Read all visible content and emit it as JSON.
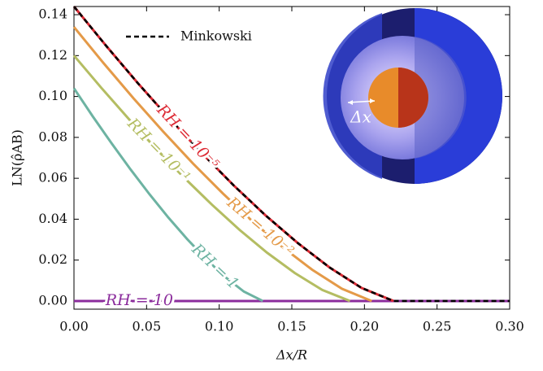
{
  "chart_data": {
    "type": "line",
    "xlabel": "Δx/R",
    "ylabel": "LN(ρ̂AB)",
    "xlim": [
      0,
      0.3
    ],
    "ylim": [
      -0.004,
      0.144
    ],
    "xticks": [
      {
        "value": 0,
        "label": "0.00"
      },
      {
        "value": 0.05,
        "label": "0.05"
      },
      {
        "value": 0.1,
        "label": "0.10"
      },
      {
        "value": 0.15,
        "label": "0.15"
      },
      {
        "value": 0.2,
        "label": "0.20"
      },
      {
        "value": 0.25,
        "label": "0.25"
      },
      {
        "value": 0.3,
        "label": "0.30"
      }
    ],
    "yticks": [
      {
        "value": 0,
        "label": "0.00"
      },
      {
        "value": 0.02,
        "label": "0.02"
      },
      {
        "value": 0.04,
        "label": "0.04"
      },
      {
        "value": 0.06,
        "label": "0.06"
      },
      {
        "value": 0.08,
        "label": "0.08"
      },
      {
        "value": 0.1,
        "label": "0.10"
      },
      {
        "value": 0.12,
        "label": "0.12"
      },
      {
        "value": 0.14,
        "label": "0.14"
      }
    ],
    "annotations": [
      "Δx"
    ],
    "series": [
      {
        "name": "RH = 10⁻⁵",
        "color": "#dd2b35",
        "x": [
          0,
          0.022,
          0.044,
          0.066,
          0.088,
          0.11,
          0.132,
          0.154,
          0.176,
          0.198,
          0.22
        ],
        "values": [
          0.144,
          0.1249,
          0.1065,
          0.089,
          0.0723,
          0.0565,
          0.0418,
          0.0284,
          0.0164,
          0.0064,
          0
        ]
      },
      {
        "name": "RH = 10⁻²",
        "color": "#e49a48",
        "x": [
          0,
          0.0205,
          0.041,
          0.0615,
          0.082,
          0.1025,
          0.123,
          0.1435,
          0.164,
          0.1845,
          0.205
        ],
        "values": [
          0.134,
          0.1162,
          0.0991,
          0.0828,
          0.0672,
          0.0526,
          0.0389,
          0.0264,
          0.0153,
          0.006,
          0
        ]
      },
      {
        "name": "RH = 10⁻¹",
        "color": "#b4bd62",
        "x": [
          0,
          0.019,
          0.038,
          0.057,
          0.076,
          0.095,
          0.114,
          0.133,
          0.152,
          0.171,
          0.19
        ],
        "values": [
          0.12,
          0.1041,
          0.0888,
          0.0741,
          0.0602,
          0.0471,
          0.0348,
          0.0236,
          0.0137,
          0.0054,
          0
        ]
      },
      {
        "name": "RH = 1",
        "color": "#6db3a2",
        "x": [
          0,
          0.013,
          0.026,
          0.039,
          0.052,
          0.065,
          0.078,
          0.091,
          0.104,
          0.117,
          0.13
        ],
        "values": [
          0.104,
          0.0902,
          0.077,
          0.0643,
          0.0522,
          0.0408,
          0.0302,
          0.0205,
          0.0118,
          0.0046,
          0
        ]
      },
      {
        "name": "RH = 10",
        "color": "#8b2c9c",
        "x": [
          0,
          0.3
        ],
        "values": [
          0,
          0
        ]
      },
      {
        "name": "Minkowski",
        "color": "#000000",
        "dashed": true,
        "x": [
          0,
          0.022,
          0.044,
          0.066,
          0.088,
          0.11,
          0.132,
          0.154,
          0.176,
          0.198,
          0.22,
          0.3
        ],
        "values": [
          0.144,
          0.1249,
          0.1065,
          0.089,
          0.0723,
          0.0565,
          0.0418,
          0.0284,
          0.0164,
          0.0064,
          0,
          0
        ]
      }
    ]
  }
}
